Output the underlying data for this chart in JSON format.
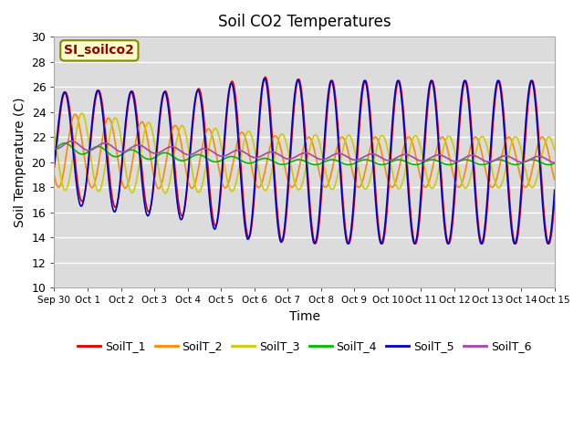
{
  "title": "Soil CO2 Temperatures",
  "xlabel": "Time",
  "ylabel": "Soil Temperature (C)",
  "ylim": [
    10,
    30
  ],
  "annotation_text": "SI_soilco2",
  "annotation_color": "#990000",
  "annotation_bg": "#ffffcc",
  "annotation_border": "#888800",
  "series_colors": [
    "#dd0000",
    "#ff8800",
    "#cccc00",
    "#00bb00",
    "#0000cc",
    "#aa44aa"
  ],
  "series_labels": [
    "SoilT_1",
    "SoilT_2",
    "SoilT_3",
    "SoilT_4",
    "SoilT_5",
    "SoilT_6"
  ],
  "xtick_labels": [
    "Sep 30",
    "Oct 1",
    "Oct 2",
    "Oct 3",
    "Oct 4",
    "Oct 5",
    "Oct 6",
    "Oct 7",
    "Oct 8",
    "Oct 9",
    "Oct 10",
    "Oct 11",
    "Oct 12",
    "Oct 13",
    "Oct 14",
    "Oct 15"
  ],
  "bg_color": "#dcdcdc",
  "fig_bg": "#ffffff",
  "grid_color": "#ffffff"
}
